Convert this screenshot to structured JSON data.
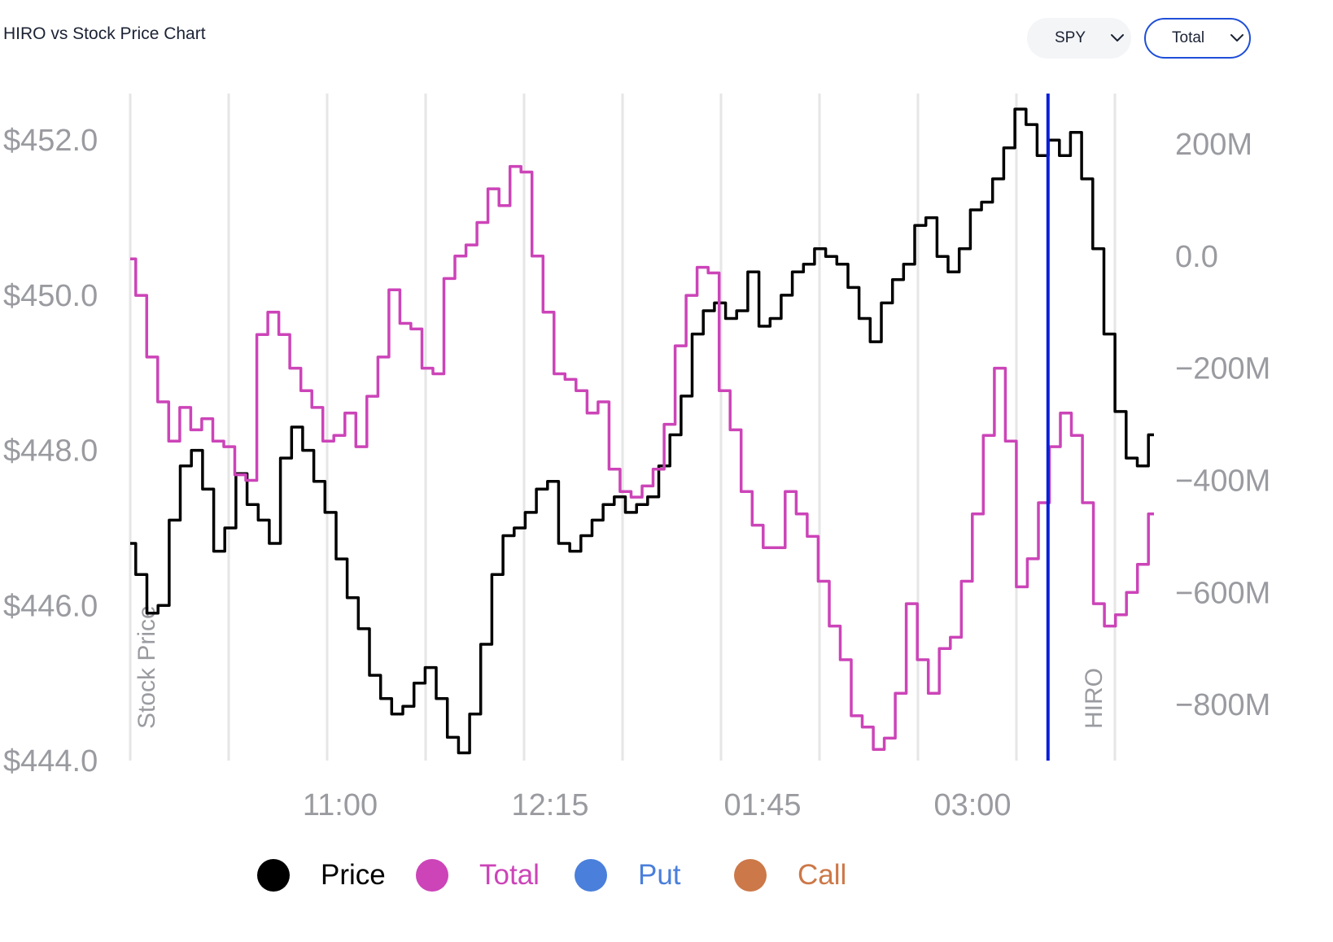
{
  "title": "HIRO vs Stock Price Chart",
  "controls": {
    "ticker_select": "SPY",
    "type_select": "Total",
    "chevron_icon": "chevron-down-icon"
  },
  "colors": {
    "price": "#000000",
    "total": "#cc44b8",
    "put": "#4a7fdb",
    "call": "#cc7848",
    "marker": "#0a1fd8",
    "axis_text": "#9a9ba0",
    "grid": "#e6e6e6"
  },
  "chart_data": {
    "type": "line",
    "title": "HIRO vs Stock Price Chart",
    "x_tick_labels": [
      "11:00",
      "12:15",
      "01:45",
      "03:00"
    ],
    "left_axis": {
      "label": "Stock Price",
      "ticks": [
        "$452.0",
        "$450.0",
        "$448.0",
        "$446.0",
        "$444.0"
      ],
      "tick_values": [
        452,
        450,
        448,
        446,
        444
      ],
      "range": [
        444,
        452.6
      ]
    },
    "right_axis": {
      "label": "HIRO",
      "ticks": [
        "200M",
        "0.0",
        "−200M",
        "−400M",
        "−600M",
        "−800M"
      ],
      "tick_values": [
        200,
        0,
        -200,
        -400,
        -600,
        -800
      ],
      "unit": "M",
      "range": [
        -900,
        290
      ]
    },
    "grid": "vertical",
    "legend_position": "bottom",
    "legend": [
      "Price",
      "Total",
      "Put",
      "Call"
    ],
    "marker_line": {
      "at_fraction": 0.8965
    },
    "series": [
      {
        "name": "Price",
        "axis": "left",
        "values": [
          446.8,
          446.4,
          445.9,
          446.0,
          447.1,
          447.8,
          448.0,
          447.5,
          446.7,
          447.0,
          447.7,
          447.3,
          447.1,
          446.8,
          447.9,
          448.3,
          448.0,
          447.6,
          447.2,
          446.6,
          446.1,
          445.7,
          445.1,
          444.8,
          444.6,
          444.7,
          445.0,
          445.2,
          444.8,
          444.3,
          444.1,
          444.6,
          445.5,
          446.4,
          446.9,
          447.0,
          447.2,
          447.5,
          447.6,
          446.8,
          446.7,
          446.9,
          447.1,
          447.3,
          447.4,
          447.2,
          447.3,
          447.4,
          447.8,
          448.2,
          448.7,
          449.5,
          449.8,
          449.9,
          449.7,
          449.8,
          450.3,
          449.6,
          449.7,
          450.0,
          450.3,
          450.4,
          450.6,
          450.5,
          450.4,
          450.1,
          449.7,
          449.4,
          449.9,
          450.2,
          450.4,
          450.9,
          451.0,
          450.5,
          450.3,
          450.6,
          451.1,
          451.2,
          451.5,
          451.9,
          452.4,
          452.2,
          451.8,
          452.0,
          451.8,
          452.1,
          451.5,
          450.6,
          449.5,
          448.5,
          447.9,
          447.8,
          448.2
        ]
      },
      {
        "name": "Total",
        "axis": "right",
        "values": [
          -5,
          -70,
          -180,
          -260,
          -330,
          -270,
          -310,
          -290,
          -330,
          -340,
          -390,
          -400,
          -140,
          -100,
          -140,
          -200,
          -240,
          -270,
          -330,
          -320,
          -280,
          -340,
          -250,
          -180,
          -60,
          -120,
          -130,
          -200,
          -210,
          -40,
          0,
          20,
          60,
          120,
          90,
          160,
          150,
          0,
          -100,
          -210,
          -220,
          -240,
          -280,
          -260,
          -380,
          -420,
          -430,
          -410,
          -380,
          -300,
          -160,
          -70,
          -20,
          -30,
          -240,
          -310,
          -420,
          -480,
          -520,
          -520,
          -420,
          -460,
          -500,
          -580,
          -660,
          -720,
          -820,
          -840,
          -880,
          -860,
          -780,
          -620,
          -720,
          -780,
          -700,
          -680,
          -580,
          -460,
          -320,
          -200,
          -330,
          -590,
          -540,
          -440,
          -340,
          -280,
          -320,
          -440,
          -620,
          -660,
          -640,
          -600,
          -550,
          -460
        ]
      }
    ]
  },
  "axis_titles": {
    "left": "Stock Price",
    "right": "HIRO"
  },
  "legend_items": [
    {
      "label": "Price",
      "color": "#000000"
    },
    {
      "label": "Total",
      "color": "#cc44b8"
    },
    {
      "label": "Put",
      "color": "#4a7fdb"
    },
    {
      "label": "Call",
      "color": "#cc7848"
    }
  ]
}
